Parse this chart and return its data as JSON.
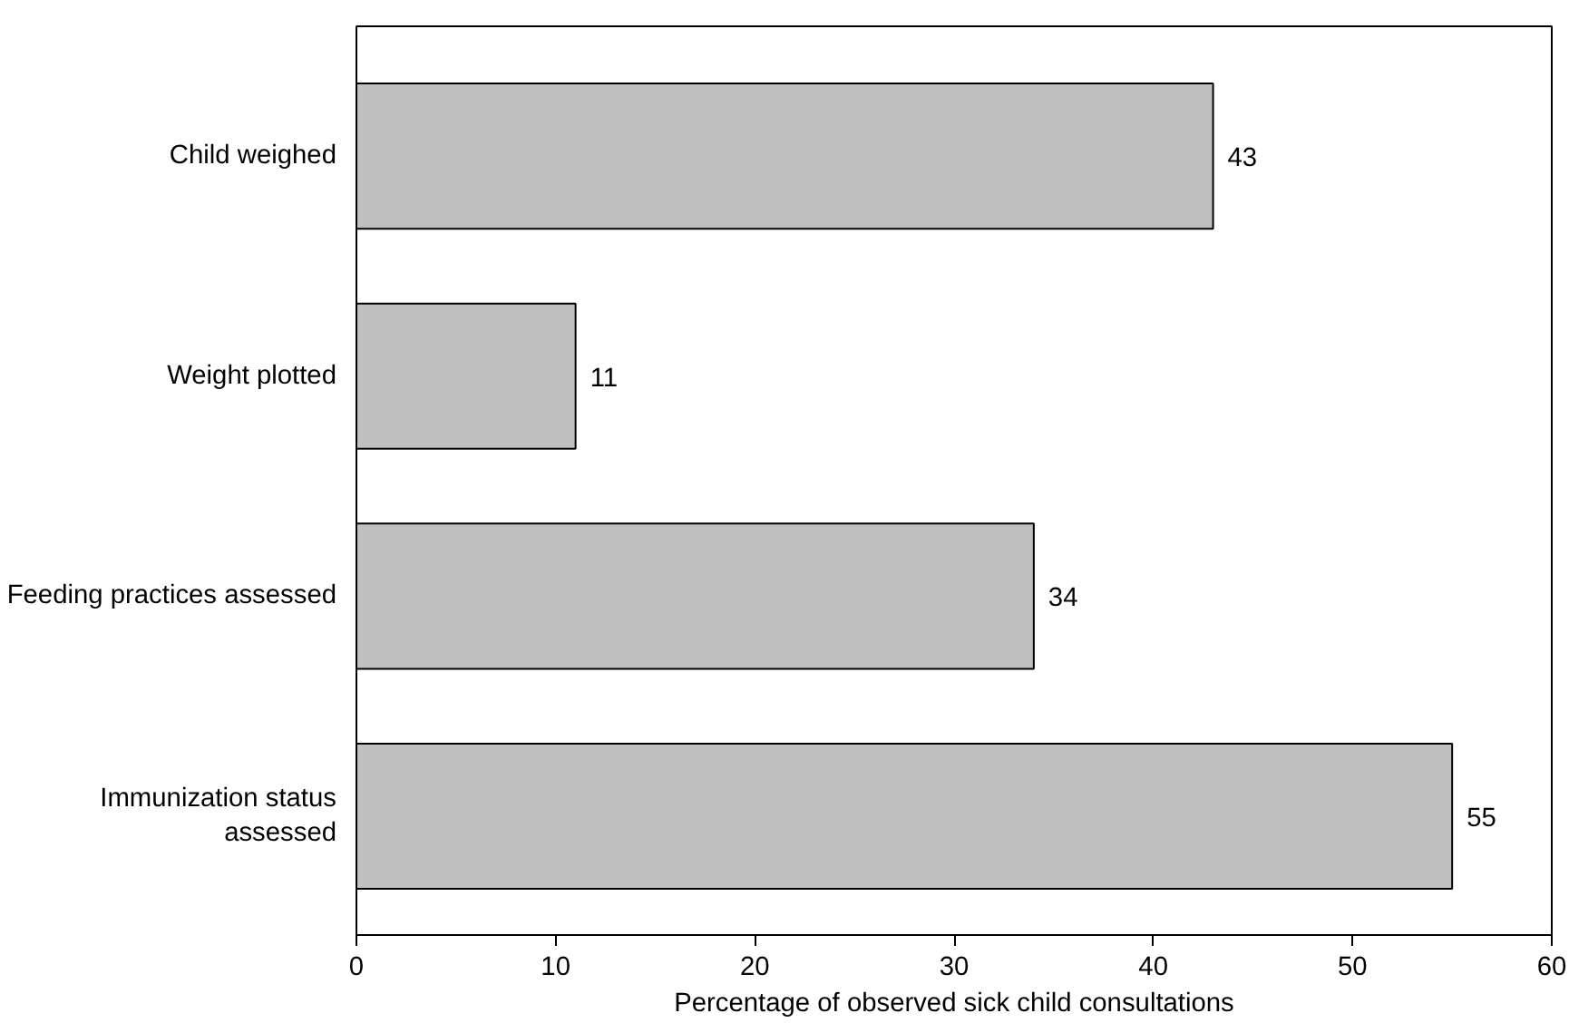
{
  "chart_data": {
    "type": "bar",
    "orientation": "horizontal",
    "xlabel": "Percentage of observed sick child consultations",
    "categories": [
      "Child weighed",
      "Weight plotted",
      "Feeding practices assessed",
      "Immunization status\nassessed"
    ],
    "values": [
      43,
      11,
      34,
      55
    ],
    "color": "#c0c0c0",
    "data_labels": true,
    "xlim": [
      0,
      60
    ],
    "xticks": [
      0,
      10,
      20,
      30,
      40,
      50,
      60
    ],
    "grid": false
  }
}
